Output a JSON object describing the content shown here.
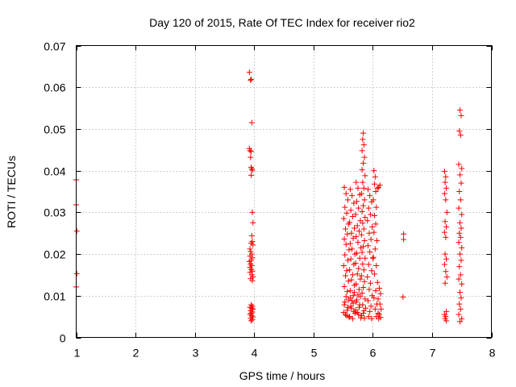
{
  "chart_data": {
    "type": "scatter",
    "title": "Day 120 of 2015, Rate Of TEC Index for receiver rio2",
    "xlabel": "GPS time / hours",
    "ylabel": "ROTI / TECUs",
    "xlim": [
      1,
      8
    ],
    "ylim": [
      0,
      0.07
    ],
    "xticks": [
      1,
      2,
      3,
      4,
      5,
      6,
      7,
      8
    ],
    "xtick_labels": [
      "1",
      "2",
      "3",
      "4",
      "5",
      "6",
      "7",
      "8"
    ],
    "yticks": [
      0,
      0.01,
      0.02,
      0.03,
      0.04,
      0.05,
      0.06,
      0.07
    ],
    "ytick_labels": [
      "0",
      "0.01",
      "0.02",
      "0.03",
      "0.04",
      "0.05",
      "0.06",
      "0.07"
    ],
    "grid": true,
    "marker": "+",
    "color": "#ff0000",
    "series": [
      {
        "name": "rio2",
        "points": [
          [
            1.0,
            0.0378
          ],
          [
            1.0,
            0.0318
          ],
          [
            1.01,
            0.0255
          ],
          [
            1.01,
            0.0153
          ],
          [
            1.0,
            0.0121
          ],
          [
            3.92,
            0.0636
          ],
          [
            3.94,
            0.0617
          ],
          [
            3.95,
            0.0619
          ],
          [
            3.96,
            0.0515
          ],
          [
            3.92,
            0.0453
          ],
          [
            3.93,
            0.0448
          ],
          [
            3.95,
            0.0446
          ],
          [
            3.94,
            0.0432
          ],
          [
            3.95,
            0.0408
          ],
          [
            3.96,
            0.0404
          ],
          [
            3.97,
            0.0401
          ],
          [
            3.95,
            0.0389
          ],
          [
            3.97,
            0.03
          ],
          [
            3.98,
            0.0275
          ],
          [
            3.96,
            0.0244
          ],
          [
            3.97,
            0.023
          ],
          [
            3.95,
            0.0226
          ],
          [
            3.98,
            0.0222
          ],
          [
            3.93,
            0.0212
          ],
          [
            3.94,
            0.0206
          ],
          [
            3.96,
            0.02
          ],
          [
            3.93,
            0.0195
          ],
          [
            3.97,
            0.0191
          ],
          [
            3.95,
            0.0185
          ],
          [
            3.92,
            0.0182
          ],
          [
            3.94,
            0.0176
          ],
          [
            3.96,
            0.0172
          ],
          [
            3.93,
            0.0168
          ],
          [
            3.95,
            0.0163
          ],
          [
            3.97,
            0.0159
          ],
          [
            3.93,
            0.0156
          ],
          [
            3.96,
            0.015
          ],
          [
            3.98,
            0.0145
          ],
          [
            3.94,
            0.0141
          ],
          [
            3.97,
            0.0136
          ],
          [
            3.95,
            0.0078
          ],
          [
            3.97,
            0.0075
          ],
          [
            3.93,
            0.0072
          ],
          [
            3.96,
            0.007
          ],
          [
            3.98,
            0.0068
          ],
          [
            3.94,
            0.0064
          ],
          [
            3.97,
            0.0061
          ],
          [
            3.95,
            0.0058
          ],
          [
            3.93,
            0.0055
          ],
          [
            3.96,
            0.0052
          ],
          [
            3.98,
            0.0049
          ],
          [
            3.94,
            0.0046
          ],
          [
            3.97,
            0.0043
          ],
          [
            3.95,
            0.004
          ],
          [
            5.52,
            0.036
          ],
          [
            5.55,
            0.0345
          ],
          [
            5.58,
            0.033
          ],
          [
            5.53,
            0.0312
          ],
          [
            5.56,
            0.0298
          ],
          [
            5.51,
            0.0285
          ],
          [
            5.59,
            0.0272
          ],
          [
            5.54,
            0.026
          ],
          [
            5.57,
            0.0248
          ],
          [
            5.52,
            0.0236
          ],
          [
            5.55,
            0.0223
          ],
          [
            5.6,
            0.021
          ],
          [
            5.53,
            0.0198
          ],
          [
            5.58,
            0.0185
          ],
          [
            5.51,
            0.0172
          ],
          [
            5.56,
            0.016
          ],
          [
            5.54,
            0.0148
          ],
          [
            5.59,
            0.0135
          ],
          [
            5.52,
            0.0122
          ],
          [
            5.57,
            0.011
          ],
          [
            5.55,
            0.0098
          ],
          [
            5.53,
            0.0085
          ],
          [
            5.58,
            0.0072
          ],
          [
            5.51,
            0.006
          ],
          [
            5.56,
            0.0052
          ],
          [
            5.6,
            0.0048
          ],
          [
            5.54,
            0.0055
          ],
          [
            5.57,
            0.0065
          ],
          [
            5.52,
            0.0078
          ],
          [
            5.59,
            0.009
          ],
          [
            5.62,
            0.0355
          ],
          [
            5.65,
            0.034
          ],
          [
            5.68,
            0.0322
          ],
          [
            5.63,
            0.0305
          ],
          [
            5.66,
            0.029
          ],
          [
            5.61,
            0.0276
          ],
          [
            5.69,
            0.0262
          ],
          [
            5.64,
            0.025
          ],
          [
            5.67,
            0.0238
          ],
          [
            5.62,
            0.0225
          ],
          [
            5.65,
            0.0212
          ],
          [
            5.7,
            0.02
          ],
          [
            5.63,
            0.0188
          ],
          [
            5.68,
            0.0175
          ],
          [
            5.61,
            0.0162
          ],
          [
            5.66,
            0.015
          ],
          [
            5.64,
            0.0138
          ],
          [
            5.69,
            0.0125
          ],
          [
            5.62,
            0.0112
          ],
          [
            5.67,
            0.01
          ],
          [
            5.65,
            0.0088
          ],
          [
            5.63,
            0.0075
          ],
          [
            5.68,
            0.0062
          ],
          [
            5.61,
            0.005
          ],
          [
            5.66,
            0.0045
          ],
          [
            5.7,
            0.0058
          ],
          [
            5.64,
            0.007
          ],
          [
            5.67,
            0.0082
          ],
          [
            5.62,
            0.0095
          ],
          [
            5.69,
            0.0108
          ],
          [
            5.72,
            0.0372
          ],
          [
            5.75,
            0.0358
          ],
          [
            5.78,
            0.0342
          ],
          [
            5.73,
            0.0326
          ],
          [
            5.76,
            0.031
          ],
          [
            5.71,
            0.0295
          ],
          [
            5.79,
            0.028
          ],
          [
            5.74,
            0.0268
          ],
          [
            5.77,
            0.0255
          ],
          [
            5.72,
            0.0242
          ],
          [
            5.75,
            0.0228
          ],
          [
            5.8,
            0.0215
          ],
          [
            5.73,
            0.0202
          ],
          [
            5.78,
            0.019
          ],
          [
            5.71,
            0.0178
          ],
          [
            5.76,
            0.0165
          ],
          [
            5.74,
            0.0152
          ],
          [
            5.79,
            0.014
          ],
          [
            5.72,
            0.0128
          ],
          [
            5.77,
            0.0115
          ],
          [
            5.75,
            0.0102
          ],
          [
            5.73,
            0.009
          ],
          [
            5.78,
            0.0078
          ],
          [
            5.71,
            0.0066
          ],
          [
            5.76,
            0.0055
          ],
          [
            5.8,
            0.0047
          ],
          [
            5.74,
            0.006
          ],
          [
            5.77,
            0.0072
          ],
          [
            5.72,
            0.0085
          ],
          [
            5.79,
            0.0098
          ],
          [
            5.84,
            0.049
          ],
          [
            5.83,
            0.0475
          ],
          [
            5.85,
            0.0462
          ],
          [
            5.82,
            0.0448
          ],
          [
            5.86,
            0.0432
          ],
          [
            5.84,
            0.0418
          ],
          [
            5.82,
            0.0402
          ],
          [
            5.87,
            0.0388
          ],
          [
            5.83,
            0.0372
          ],
          [
            5.85,
            0.0358
          ],
          [
            5.81,
            0.0345
          ],
          [
            5.86,
            0.033
          ],
          [
            5.84,
            0.0316
          ],
          [
            5.82,
            0.0302
          ],
          [
            5.87,
            0.0288
          ],
          [
            5.83,
            0.0274
          ],
          [
            5.85,
            0.026
          ],
          [
            5.81,
            0.0246
          ],
          [
            5.86,
            0.0232
          ],
          [
            5.84,
            0.0218
          ],
          [
            5.82,
            0.0204
          ],
          [
            5.87,
            0.019
          ],
          [
            5.83,
            0.0176
          ],
          [
            5.85,
            0.0162
          ],
          [
            5.81,
            0.0148
          ],
          [
            5.86,
            0.0134
          ],
          [
            5.84,
            0.012
          ],
          [
            5.82,
            0.0106
          ],
          [
            5.87,
            0.0092
          ],
          [
            5.83,
            0.0078
          ],
          [
            5.85,
            0.0064
          ],
          [
            5.81,
            0.0052
          ],
          [
            5.86,
            0.0046
          ],
          [
            5.84,
            0.0058
          ],
          [
            5.88,
            0.007
          ],
          [
            5.92,
            0.0355
          ],
          [
            5.95,
            0.034
          ],
          [
            5.98,
            0.0325
          ],
          [
            5.93,
            0.031
          ],
          [
            5.96,
            0.0295
          ],
          [
            5.91,
            0.028
          ],
          [
            5.99,
            0.0265
          ],
          [
            5.94,
            0.025
          ],
          [
            5.97,
            0.0235
          ],
          [
            5.92,
            0.022
          ],
          [
            5.95,
            0.0205
          ],
          [
            6.0,
            0.019
          ],
          [
            5.93,
            0.0175
          ],
          [
            5.98,
            0.016
          ],
          [
            5.91,
            0.0145
          ],
          [
            5.96,
            0.013
          ],
          [
            5.94,
            0.0115
          ],
          [
            5.99,
            0.01
          ],
          [
            5.92,
            0.0088
          ],
          [
            5.97,
            0.0075
          ],
          [
            5.95,
            0.0062
          ],
          [
            5.93,
            0.005
          ],
          [
            5.98,
            0.0045
          ],
          [
            6.02,
            0.04
          ],
          [
            6.04,
            0.0385
          ],
          [
            6.03,
            0.0368
          ],
          [
            6.05,
            0.035
          ],
          [
            6.01,
            0.033
          ],
          [
            6.06,
            0.0312
          ],
          [
            6.03,
            0.0292
          ],
          [
            6.05,
            0.0272
          ],
          [
            6.02,
            0.0252
          ],
          [
            6.07,
            0.0232
          ],
          [
            6.04,
            0.0212
          ],
          [
            6.01,
            0.0192
          ],
          [
            6.06,
            0.0172
          ],
          [
            6.03,
            0.0152
          ],
          [
            6.08,
            0.0132
          ],
          [
            6.05,
            0.0112
          ],
          [
            6.02,
            0.0095
          ],
          [
            6.07,
            0.008
          ],
          [
            6.04,
            0.0068
          ],
          [
            6.09,
            0.0058
          ],
          [
            6.06,
            0.005
          ],
          [
            6.1,
            0.0045
          ],
          [
            6.12,
            0.0365
          ],
          [
            6.1,
            0.036
          ],
          [
            6.08,
            0.0358
          ],
          [
            6.11,
            0.0118
          ],
          [
            6.13,
            0.0105
          ],
          [
            6.09,
            0.0092
          ],
          [
            6.12,
            0.008
          ],
          [
            6.14,
            0.0068
          ],
          [
            6.11,
            0.0055
          ],
          [
            6.13,
            0.0048
          ],
          [
            6.52,
            0.0248
          ],
          [
            6.52,
            0.0235
          ],
          [
            6.51,
            0.0097
          ],
          [
            7.21,
            0.0398
          ],
          [
            7.23,
            0.0385
          ],
          [
            7.22,
            0.0372
          ],
          [
            7.24,
            0.0358
          ],
          [
            7.21,
            0.0345
          ],
          [
            7.23,
            0.033
          ],
          [
            7.25,
            0.03
          ],
          [
            7.22,
            0.0278
          ],
          [
            7.24,
            0.0265
          ],
          [
            7.21,
            0.0252
          ],
          [
            7.23,
            0.024
          ],
          [
            7.22,
            0.02
          ],
          [
            7.24,
            0.0188
          ],
          [
            7.21,
            0.0175
          ],
          [
            7.23,
            0.0158
          ],
          [
            7.25,
            0.0145
          ],
          [
            7.22,
            0.013
          ],
          [
            7.24,
            0.0062
          ],
          [
            7.21,
            0.0055
          ],
          [
            7.23,
            0.005
          ],
          [
            7.22,
            0.0045
          ],
          [
            7.24,
            0.004
          ],
          [
            7.47,
            0.0545
          ],
          [
            7.49,
            0.0532
          ],
          [
            7.46,
            0.0495
          ],
          [
            7.48,
            0.0485
          ],
          [
            7.45,
            0.0415
          ],
          [
            7.5,
            0.0405
          ],
          [
            7.47,
            0.039
          ],
          [
            7.49,
            0.037
          ],
          [
            7.46,
            0.035
          ],
          [
            7.48,
            0.033
          ],
          [
            7.45,
            0.031
          ],
          [
            7.5,
            0.0295
          ],
          [
            7.47,
            0.0275
          ],
          [
            7.49,
            0.0262
          ],
          [
            7.46,
            0.025
          ],
          [
            7.48,
            0.024
          ],
          [
            7.45,
            0.0228
          ],
          [
            7.5,
            0.0215
          ],
          [
            7.47,
            0.02
          ],
          [
            7.49,
            0.0185
          ],
          [
            7.46,
            0.017
          ],
          [
            7.48,
            0.015
          ],
          [
            7.45,
            0.014
          ],
          [
            7.5,
            0.0128
          ],
          [
            7.47,
            0.0108
          ],
          [
            7.49,
            0.0095
          ],
          [
            7.46,
            0.008
          ],
          [
            7.48,
            0.0068
          ],
          [
            7.45,
            0.0055
          ],
          [
            7.5,
            0.0045
          ],
          [
            7.47,
            0.0038
          ]
        ]
      }
    ]
  }
}
